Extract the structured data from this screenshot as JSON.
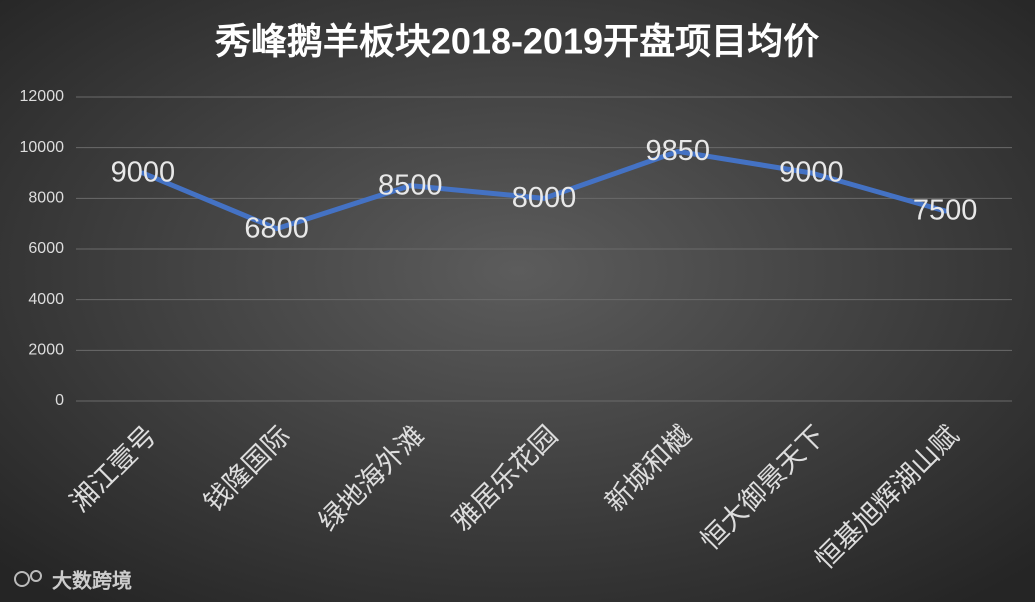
{
  "chart_data": {
    "type": "line",
    "title": "秀峰鹅羊板块2018-2019开盘项目均价",
    "categories": [
      "湘江壹号",
      "钱隆国际",
      "绿地海外滩",
      "雅居乐花园",
      "新城和樾",
      "恒大御景天下",
      "恒基旭辉湖山赋"
    ],
    "series": [
      {
        "name": "均价",
        "color": "#4472c4",
        "values": [
          9000,
          6800,
          8500,
          8000,
          9850,
          9000,
          7500
        ]
      }
    ],
    "ylim": [
      0,
      12000
    ],
    "yticks": [
      0,
      2000,
      4000,
      6000,
      8000,
      10000,
      12000
    ],
    "grid": true
  },
  "watermark": "大数跨境"
}
